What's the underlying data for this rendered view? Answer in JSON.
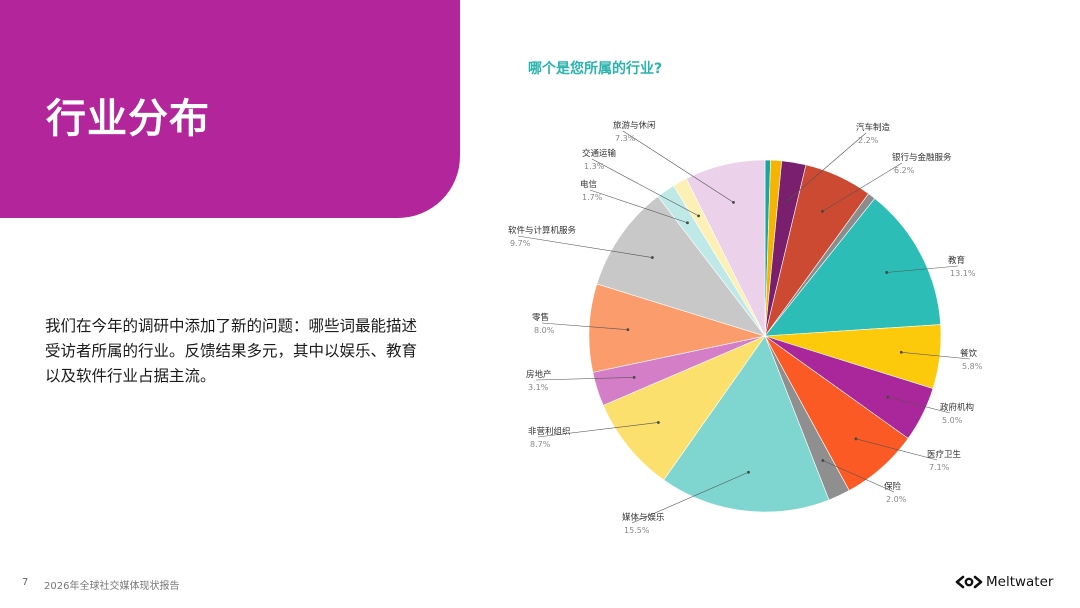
{
  "header": {
    "title": "行业分布"
  },
  "intro": {
    "text": "我们在今年的调研中添加了新的问题：哪些词最能描述受访者所属的行业。反馈结果多元，其中以娱乐、教育以及软件行业占据主流。"
  },
  "footer": {
    "page_number": "7",
    "report_name": "2026年全球社交媒体现状报告",
    "brand_name": "Meltwater"
  },
  "chart_data": {
    "type": "pie",
    "title": "哪个是您所属的行业?",
    "slices": [
      {
        "label": "",
        "value": 0.5,
        "value_label": "",
        "color": "#1aa5a0"
      },
      {
        "label": "",
        "value": 1.0,
        "value_label": "",
        "color": "#f4b400"
      },
      {
        "label": "汽车制造",
        "value": 2.2,
        "value_label": "2.2%",
        "color": "#7a1f6e"
      },
      {
        "label": "银行与金融服务",
        "value": 6.2,
        "value_label": "6.2%",
        "color": "#cc4a32"
      },
      {
        "label": "",
        "value": 0.7,
        "value_label": "",
        "color": "#8c8c8c"
      },
      {
        "label": "教育",
        "value": 13.1,
        "value_label": "13.1%",
        "color": "#2bbdb6"
      },
      {
        "label": "餐饮",
        "value": 5.8,
        "value_label": "5.8%",
        "color": "#fcc90b"
      },
      {
        "label": "政府机构",
        "value": 5.0,
        "value_label": "5.0%",
        "color": "#a9269b"
      },
      {
        "label": "医疗卫生",
        "value": 7.1,
        "value_label": "7.1%",
        "color": "#fb5a24"
      },
      {
        "label": "保险",
        "value": 2.0,
        "value_label": "2.0%",
        "color": "#8f8f8f"
      },
      {
        "label": "媒体与娱乐",
        "value": 15.5,
        "value_label": "15.5%",
        "color": "#7fd5d0"
      },
      {
        "label": "非营利组织",
        "value": 8.7,
        "value_label": "8.7%",
        "color": "#fce06d"
      },
      {
        "label": "房地产",
        "value": 3.1,
        "value_label": "3.1%",
        "color": "#d57ec8"
      },
      {
        "label": "零售",
        "value": 8.0,
        "value_label": "8.0%",
        "color": "#fb9c6c"
      },
      {
        "label": "软件与计算机服务",
        "value": 9.7,
        "value_label": "9.7%",
        "color": "#c8c8c8"
      },
      {
        "label": "电信",
        "value": 1.7,
        "value_label": "1.7%",
        "color": "#bfe9e7"
      },
      {
        "label": "交通运输",
        "value": 1.3,
        "value_label": "1.3%",
        "color": "#fdf0b4"
      },
      {
        "label": "旅游与休闲",
        "value": 7.3,
        "value_label": "7.3%",
        "color": "#ebd1e9"
      }
    ]
  }
}
